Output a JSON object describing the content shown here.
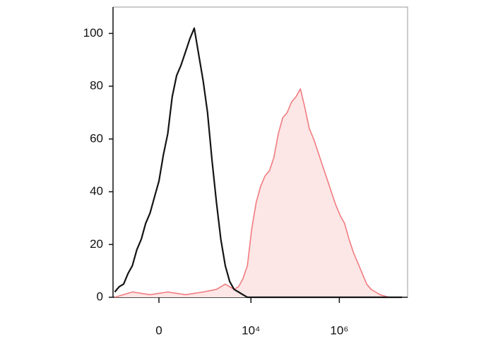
{
  "chart_data": {
    "type": "histogram-overlay",
    "xscale": "biexponential",
    "xlim": [
      -900,
      35000000
    ],
    "ylim": [
      0,
      110
    ],
    "yticks": [
      0,
      20,
      40,
      60,
      80,
      100
    ],
    "xticks": [
      0,
      {
        "value": 10000,
        "label": "10⁴"
      },
      {
        "value": 1000000,
        "label": "10⁶"
      }
    ],
    "series": [
      {
        "color": "#f07c80",
        "fill": "#fde6e6",
        "x": [
          -822,
          -310,
          -79,
          79,
          310,
          822,
          1652,
          2623,
          4158,
          5236,
          6591,
          8300,
          10450,
          13160,
          16560,
          20850,
          26250,
          33050,
          41600,
          52400,
          65900,
          83000,
          104500,
          131600,
          165600,
          208500,
          262500,
          330500,
          416000,
          524000,
          659000,
          830000,
          1045000,
          1316000,
          1656000,
          2085000,
          2625000,
          3305000,
          4160000,
          5240000,
          6590000,
          8300000,
          13160000
        ],
        "values": [
          0,
          2,
          1,
          2,
          1,
          2,
          3,
          5,
          3,
          4,
          7,
          12,
          26,
          36,
          42,
          46,
          48,
          53,
          62,
          68,
          70,
          74,
          76,
          79,
          72,
          64,
          60,
          55,
          50,
          45,
          40,
          35,
          31,
          28,
          22,
          17,
          13,
          9,
          5,
          3,
          2,
          1,
          0
        ]
      },
      {
        "color": "#141414",
        "x": [
          -822,
          -649,
          -510,
          -399,
          -310,
          -236,
          -175,
          -124,
          -79,
          -39,
          0,
          39,
          79,
          124,
          175,
          236,
          310,
          399,
          510,
          649,
          822,
          1038,
          1310,
          1652,
          2082,
          2623,
          3302,
          4158,
          5236,
          6591,
          8300,
          83000,
          830000,
          26250000
        ],
        "values": [
          2,
          4,
          5,
          9,
          12,
          18,
          22,
          28,
          32,
          38,
          44,
          54,
          62,
          76,
          84,
          88,
          93,
          98,
          102,
          92,
          82,
          70,
          52,
          36,
          22,
          12,
          6,
          3,
          2,
          1,
          0,
          0,
          0,
          0
        ]
      }
    ]
  }
}
